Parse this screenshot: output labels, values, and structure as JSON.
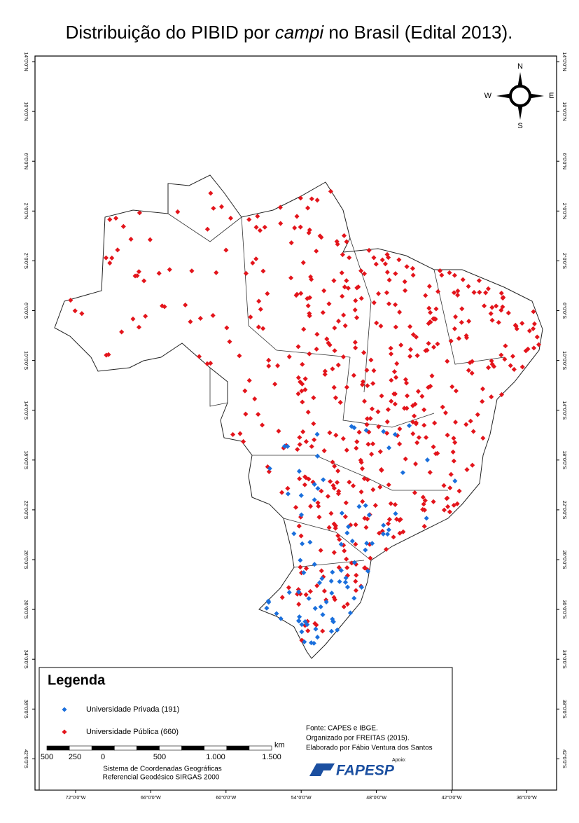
{
  "title": {
    "before": "Distribuição do PIBID por ",
    "italic": "campi",
    "after": " no Brasil (Edital 2013)."
  },
  "latitude_labels": [
    "14°0'0\"N",
    "10°0'0\"N",
    "6°0'0\"N",
    "2°0'0\"N",
    "2°0'0\"S",
    "6°0'0\"S",
    "10°0'0\"S",
    "14°0'0\"S",
    "18°0'0\"S",
    "22°0'0\"S",
    "26°0'0\"S",
    "30°0'0\"S",
    "34°0'0\"S",
    "38°0'0\"S",
    "42°0'0\"S"
  ],
  "longitude_labels": [
    "72°0'0\"W",
    "66°0'0\"W",
    "60°0'0\"W",
    "54°0'0\"W",
    "48°0'0\"W",
    "42°0'0\"W",
    "36°0'0\"W"
  ],
  "compass": {
    "n": "N",
    "e": "E",
    "s": "S",
    "w": "W"
  },
  "legend": {
    "title": "Legenda",
    "items": [
      {
        "label": "Universidade Privada (191)",
        "color": "#1a6fdc"
      },
      {
        "label": "Universidade Pública (660)",
        "color": "#e3141b"
      }
    ]
  },
  "scale_bar": {
    "labels": [
      "500",
      "250",
      "0",
      "500",
      "1.000",
      "1.500"
    ],
    "unit": "km"
  },
  "reference": [
    "Sistema de Coordenadas Geográficas",
    "Referencial Geodésico SIRGAS 2000"
  ],
  "source": [
    "Fonte: CAPES e IBGE.",
    "Organizado por FREITAS (2015).",
    "Elaborado por Fábio Ventura dos Santos"
  ],
  "sponsor": {
    "label": "Apoio:",
    "name": "FAPESP"
  }
}
